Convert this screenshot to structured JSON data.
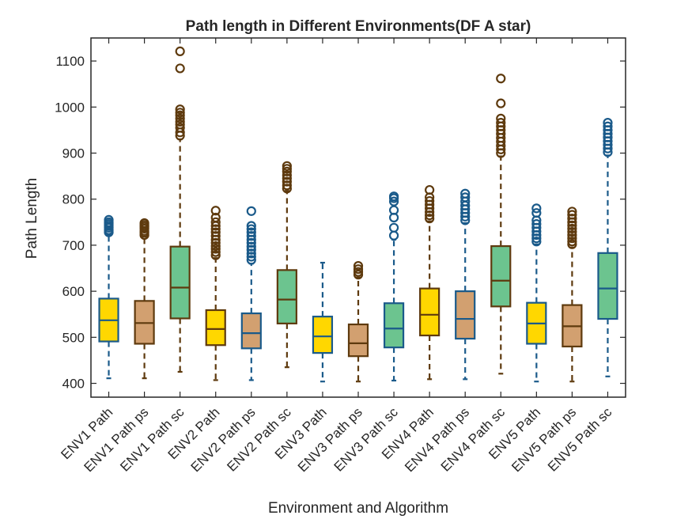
{
  "chart_data": {
    "type": "box",
    "title": "Path length in Different Environments(DF A star)",
    "xlabel": "Environment and Algorithm",
    "ylabel": "Path Length",
    "ylim": [
      370,
      1150
    ],
    "yticks": [
      400,
      500,
      600,
      700,
      800,
      900,
      1000,
      1100
    ],
    "grid": false,
    "colors": {
      "yellow": "#FFD700",
      "tan": "#D2A070",
      "green": "#6CC48F",
      "blue_edge": "#1A5A8A",
      "brown_edge": "#5E3A0E"
    },
    "categories": [
      "ENV1 Path",
      "ENV1 Path ps",
      "ENV1 Path sc",
      "ENV2 Path",
      "ENV2 Path ps",
      "ENV2 Path sc",
      "ENV3 Path",
      "ENV3 Path ps",
      "ENV3 Path sc",
      "ENV4 Path",
      "ENV4 Path ps",
      "ENV4 Path sc",
      "ENV5 Path",
      "ENV5 Path ps",
      "ENV5 Path sc"
    ],
    "boxes": [
      {
        "label": "ENV1 Path",
        "fill": "yellow",
        "edge": "blue_edge",
        "whislo": 411,
        "q1": 491,
        "med": 537,
        "q3": 584,
        "whishi": 722,
        "fliers": [
          728,
          733,
          738,
          742,
          746,
          750,
          755
        ]
      },
      {
        "label": "ENV1 Path ps",
        "fill": "tan",
        "edge": "brown_edge",
        "whislo": 411,
        "q1": 486,
        "med": 531,
        "q3": 579,
        "whishi": 718,
        "fliers": [
          722,
          727,
          731,
          736,
          740,
          744,
          748
        ]
      },
      {
        "label": "ENV1 Path sc",
        "fill": "green",
        "edge": "brown_edge",
        "whislo": 425,
        "q1": 541,
        "med": 608,
        "q3": 697,
        "whishi": 930,
        "fliers": [
          938,
          945,
          955,
          962,
          968,
          975,
          982,
          988,
          995,
          1084,
          1121
        ]
      },
      {
        "label": "ENV2 Path",
        "fill": "yellow",
        "edge": "brown_edge",
        "whislo": 407,
        "q1": 483,
        "med": 518,
        "q3": 559,
        "whishi": 672,
        "fliers": [
          678,
          685,
          692,
          698,
          705,
          712,
          720,
          728,
          735,
          742,
          750,
          760,
          775
        ]
      },
      {
        "label": "ENV2 Path ps",
        "fill": "tan",
        "edge": "blue_edge",
        "whislo": 407,
        "q1": 476,
        "med": 509,
        "q3": 552,
        "whishi": 660,
        "fliers": [
          668,
          675,
          682,
          690,
          697,
          705,
          712,
          720,
          728,
          735,
          742,
          774
        ]
      },
      {
        "label": "ENV2 Path sc",
        "fill": "green",
        "edge": "brown_edge",
        "whislo": 435,
        "q1": 530,
        "med": 582,
        "q3": 646,
        "whishi": 818,
        "fliers": [
          823,
          830,
          838,
          845,
          852,
          860,
          866,
          872
        ]
      },
      {
        "label": "ENV3 Path",
        "fill": "yellow",
        "edge": "blue_edge",
        "whislo": 404,
        "q1": 466,
        "med": 502,
        "q3": 545,
        "whishi": 662,
        "fliers": []
      },
      {
        "label": "ENV3 Path ps",
        "fill": "tan",
        "edge": "brown_edge",
        "whislo": 404,
        "q1": 459,
        "med": 487,
        "q3": 528,
        "whishi": 630,
        "fliers": [
          636,
          642,
          648,
          655
        ]
      },
      {
        "label": "ENV3 Path sc",
        "fill": "green",
        "edge": "blue_edge",
        "whislo": 406,
        "q1": 478,
        "med": 519,
        "q3": 574,
        "whishi": 712,
        "fliers": [
          721,
          738,
          760,
          776,
          795,
          802,
          806
        ]
      },
      {
        "label": "ENV4 Path",
        "fill": "yellow",
        "edge": "brown_edge",
        "whislo": 409,
        "q1": 504,
        "med": 549,
        "q3": 606,
        "whishi": 752,
        "fliers": [
          758,
          765,
          772,
          780,
          788,
          796,
          804,
          820
        ]
      },
      {
        "label": "ENV4 Path ps",
        "fill": "tan",
        "edge": "blue_edge",
        "whislo": 409,
        "q1": 497,
        "med": 540,
        "q3": 600,
        "whishi": 748,
        "fliers": [
          754,
          762,
          770,
          778,
          786,
          795,
          804,
          812
        ]
      },
      {
        "label": "ENV4 Path sc",
        "fill": "green",
        "edge": "brown_edge",
        "whislo": 421,
        "q1": 567,
        "med": 623,
        "q3": 698,
        "whishi": 893,
        "fliers": [
          900,
          908,
          916,
          925,
          933,
          942,
          950,
          958,
          966,
          975,
          1008,
          1062
        ]
      },
      {
        "label": "ENV5 Path",
        "fill": "yellow",
        "edge": "blue_edge",
        "whislo": 404,
        "q1": 486,
        "med": 530,
        "q3": 575,
        "whishi": 702,
        "fliers": [
          708,
          715,
          722,
          730,
          738,
          746,
          754,
          770,
          780
        ]
      },
      {
        "label": "ENV5 Path ps",
        "fill": "tan",
        "edge": "brown_edge",
        "whislo": 404,
        "q1": 480,
        "med": 524,
        "q3": 570,
        "whishi": 695,
        "fliers": [
          702,
          708,
          715,
          722,
          729,
          736,
          743,
          750,
          758,
          766,
          773
        ]
      },
      {
        "label": "ENV5 Path sc",
        "fill": "green",
        "edge": "blue_edge",
        "whislo": 415,
        "q1": 540,
        "med": 606,
        "q3": 683,
        "whishi": 895,
        "fliers": [
          902,
          910,
          918,
          926,
          934,
          942,
          950,
          958,
          966
        ]
      }
    ]
  }
}
